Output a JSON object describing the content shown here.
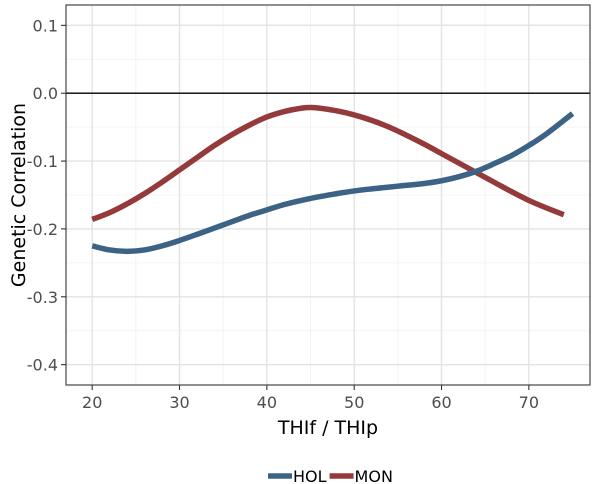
{
  "chart_data": {
    "type": "line",
    "xlabel": "THIf / THIp",
    "ylabel": "Genetic Correlation",
    "xlim": [
      17,
      77
    ],
    "ylim": [
      -0.43,
      0.13
    ],
    "x_ticks": [
      20,
      30,
      40,
      50,
      60,
      70
    ],
    "y_ticks": [
      0.1,
      0.0,
      -0.1,
      -0.2,
      -0.3,
      -0.4
    ],
    "x_tick_labels": [
      "20",
      "30",
      "40",
      "50",
      "60",
      "70"
    ],
    "y_tick_labels": [
      "0.1",
      "0.0",
      "-0.1",
      "-0.2",
      "-0.3",
      "-0.4"
    ],
    "reference_line_y": 0,
    "grid": true,
    "legend_position": "bottom",
    "series": [
      {
        "name": "HOL",
        "color": "#3c6385",
        "x": [
          20,
          22,
          24,
          26,
          28,
          30,
          32,
          35,
          38,
          40,
          42,
          45,
          48,
          50,
          52,
          55,
          58,
          60,
          62,
          64,
          66,
          68,
          70,
          72,
          75
        ],
        "y": [
          -0.225,
          -0.231,
          -0.233,
          -0.231,
          -0.225,
          -0.217,
          -0.208,
          -0.194,
          -0.18,
          -0.172,
          -0.164,
          -0.155,
          -0.148,
          -0.144,
          -0.141,
          -0.137,
          -0.133,
          -0.129,
          -0.123,
          -0.115,
          -0.104,
          -0.092,
          -0.077,
          -0.06,
          -0.03
        ]
      },
      {
        "name": "MON",
        "color": "#953a3b",
        "x": [
          20,
          22,
          24,
          26,
          28,
          30,
          32,
          34,
          36,
          38,
          40,
          42,
          44,
          45,
          46,
          48,
          50,
          52,
          54,
          56,
          58,
          60,
          62,
          64,
          66,
          68,
          70,
          72,
          74
        ],
        "y": [
          -0.186,
          -0.176,
          -0.163,
          -0.148,
          -0.131,
          -0.113,
          -0.095,
          -0.077,
          -0.061,
          -0.047,
          -0.035,
          -0.027,
          -0.022,
          -0.021,
          -0.022,
          -0.026,
          -0.032,
          -0.04,
          -0.05,
          -0.062,
          -0.075,
          -0.089,
          -0.103,
          -0.117,
          -0.131,
          -0.145,
          -0.158,
          -0.169,
          -0.179
        ]
      }
    ]
  }
}
